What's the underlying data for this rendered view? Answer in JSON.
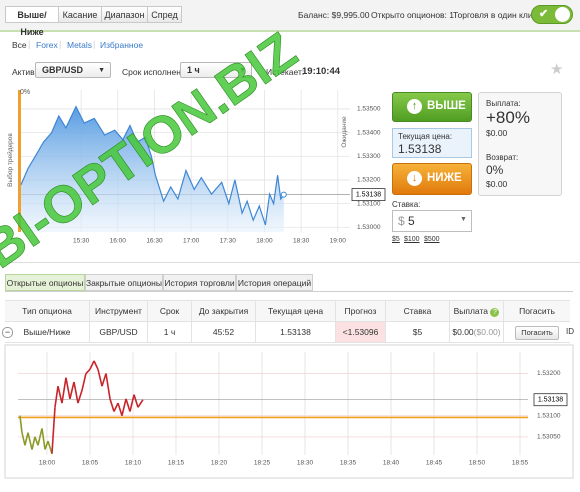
{
  "watermark": "BI-OPTION.BIZ",
  "header": {
    "tabs": [
      "Выше/Ниже",
      "Касание",
      "Диапазон",
      "Спред"
    ],
    "balance": "Баланс: $9,995.00",
    "open_options": "Открыто опционов: 1",
    "one_click": "Торговля в один клик:"
  },
  "filters": [
    "Все",
    "Forex",
    "Metals",
    "Избранное"
  ],
  "controls": {
    "asset_label": "Актив:",
    "asset": "GBP/USD",
    "expiry_label": "Срок исполнения:",
    "expiry": "1 ч",
    "expires_label": "Истекает:",
    "expires": "19:10:44"
  },
  "trade": {
    "up": "ВЫШЕ",
    "current_label": "Текущая цена:",
    "current": "1.53138",
    "down": "НИЖЕ",
    "stake_label": "Ставка:",
    "stake_currency": "$",
    "stake": "5",
    "quick": [
      "$5",
      "$100",
      "$500"
    ],
    "payout_label": "Выплата:",
    "payout": "+80%",
    "payout_amount": "$0.00",
    "refund_label": "Возврат:",
    "refund": "0%",
    "refund_amount": "$0.00"
  },
  "tabs": [
    "Открытые опционы",
    "Закрытые опционы",
    "История торговли",
    "История операций"
  ],
  "table": {
    "headers": [
      "Тип опциона",
      "Инструмент",
      "Срок",
      "До закрытия",
      "Текущая цена",
      "Прогноз",
      "Ставка",
      "Выплата",
      "Погасить"
    ],
    "help": "?",
    "rows": [
      [
        "Выше/Ниже",
        "GBP/USD",
        "1 ч",
        "45:52",
        "1.53138",
        "<1.53096",
        "$5",
        "$0.00",
        "($0.00)",
        "Погасить"
      ]
    ],
    "id": "ID"
  },
  "chart_data": [
    {
      "type": "line",
      "side_label": "Выбор трейдеров",
      "side_value": "0%",
      "axis_label": "Ожидание",
      "color": "#3d86d6",
      "fill": true,
      "grid": true,
      "x": [
        880.8,
        886.7,
        892.5,
        899.2,
        905.8,
        911.7,
        917.5,
        925.8,
        932.5,
        940.8,
        949.2,
        957.5,
        964.2,
        970,
        975.8,
        982.5,
        987.5,
        990.8,
        997.5,
        1003.3,
        1009.2,
        1015.8,
        1022.5,
        1028.3,
        1036.7,
        1045,
        1050.8,
        1055.8,
        1061.7,
        1065.8,
        1070.8,
        1075.8,
        1080.8,
        1084.2,
        1087.5,
        1090.8,
        1093.3,
        1095.8
      ],
      "values": [
        1.5318,
        1.5325,
        1.533,
        1.5336,
        1.534,
        1.5347,
        1.5342,
        1.5351,
        1.5344,
        1.5346,
        1.5339,
        1.5341,
        1.5337,
        1.5343,
        1.5336,
        1.5338,
        1.533,
        1.5322,
        1.5311,
        1.5317,
        1.5312,
        1.5324,
        1.5316,
        1.5321,
        1.5314,
        1.5319,
        1.531,
        1.532,
        1.5306,
        1.5311,
        1.5303,
        1.5309,
        1.5301,
        1.5314,
        1.531,
        1.5322,
        1.5312,
        1.53138
      ],
      "xlim": [
        880.8,
        1150
      ],
      "ylim": [
        1.5298,
        1.5358
      ],
      "xticks": [
        {
          "value": 930,
          "label": "15:30"
        },
        {
          "value": 960,
          "label": "16:00"
        },
        {
          "value": 990,
          "label": "16:30"
        },
        {
          "value": 1020,
          "label": "17:00"
        },
        {
          "value": 1050,
          "label": "17:30"
        },
        {
          "value": 1080,
          "label": "18:00"
        },
        {
          "value": 1110,
          "label": "18:30"
        },
        {
          "value": 1140,
          "label": "19:00"
        }
      ],
      "yticks": [
        {
          "value": 1.53,
          "label": "1.53000"
        },
        {
          "value": 1.531,
          "label": "1.53100"
        },
        {
          "value": 1.532,
          "label": "1.53200"
        },
        {
          "value": 1.533,
          "label": "1.53300"
        },
        {
          "value": 1.534,
          "label": "1.53400"
        },
        {
          "value": 1.535,
          "label": "1.53500"
        }
      ],
      "current": 1.53138
    },
    {
      "type": "line",
      "color_above": "#c8242b",
      "color_below": "#8b9a26",
      "strike": 1.53096,
      "strike_color": "#f0a020",
      "grid": true,
      "x": [
        1076.86,
        1077.09,
        1077.44,
        1077.79,
        1078.26,
        1078.6,
        1078.95,
        1079.42,
        1079.77,
        1080.12,
        1080.58,
        1080.93,
        1081.28,
        1081.74,
        1082.21,
        1082.67,
        1083.14,
        1083.6,
        1084.07,
        1084.53,
        1085,
        1085.47,
        1085.93,
        1086.4,
        1086.86,
        1087.33,
        1087.79,
        1088.26,
        1088.72,
        1089.19,
        1089.65,
        1090.12,
        1090.58,
        1091.16
      ],
      "values": [
        1.531,
        1.5306,
        1.5303,
        1.5306,
        1.5302,
        1.5305,
        1.5303,
        1.5307,
        1.5302,
        1.5304,
        1.5301,
        1.5312,
        1.5317,
        1.5313,
        1.5319,
        1.5314,
        1.5318,
        1.5313,
        1.5316,
        1.532,
        1.5321,
        1.5323,
        1.5321,
        1.5317,
        1.532,
        1.5314,
        1.5311,
        1.5313,
        1.531,
        1.5314,
        1.5311,
        1.5315,
        1.5312,
        1.53138
      ],
      "xlim": [
        1076.63,
        1135.93
      ],
      "ylim": [
        1.53007,
        1.53251
      ],
      "xticks": [
        {
          "value": 1080,
          "label": "18:00"
        },
        {
          "value": 1085,
          "label": "18:05"
        },
        {
          "value": 1090,
          "label": "18:10"
        },
        {
          "value": 1095,
          "label": "18:15"
        },
        {
          "value": 1100,
          "label": "18:20"
        },
        {
          "value": 1105,
          "label": "18:25"
        },
        {
          "value": 1110,
          "label": "18:30"
        },
        {
          "value": 1115,
          "label": "18:35"
        },
        {
          "value": 1120,
          "label": "18:40"
        },
        {
          "value": 1125,
          "label": "18:45"
        },
        {
          "value": 1130,
          "label": "18:50"
        },
        {
          "value": 1135,
          "label": "18:55"
        }
      ],
      "yticks": [
        {
          "value": 1.5305,
          "label": "1.53050"
        },
        {
          "value": 1.531,
          "label": "1.53100"
        },
        {
          "value": 1.532,
          "label": "1.53200"
        }
      ],
      "current": 1.53138
    }
  ]
}
